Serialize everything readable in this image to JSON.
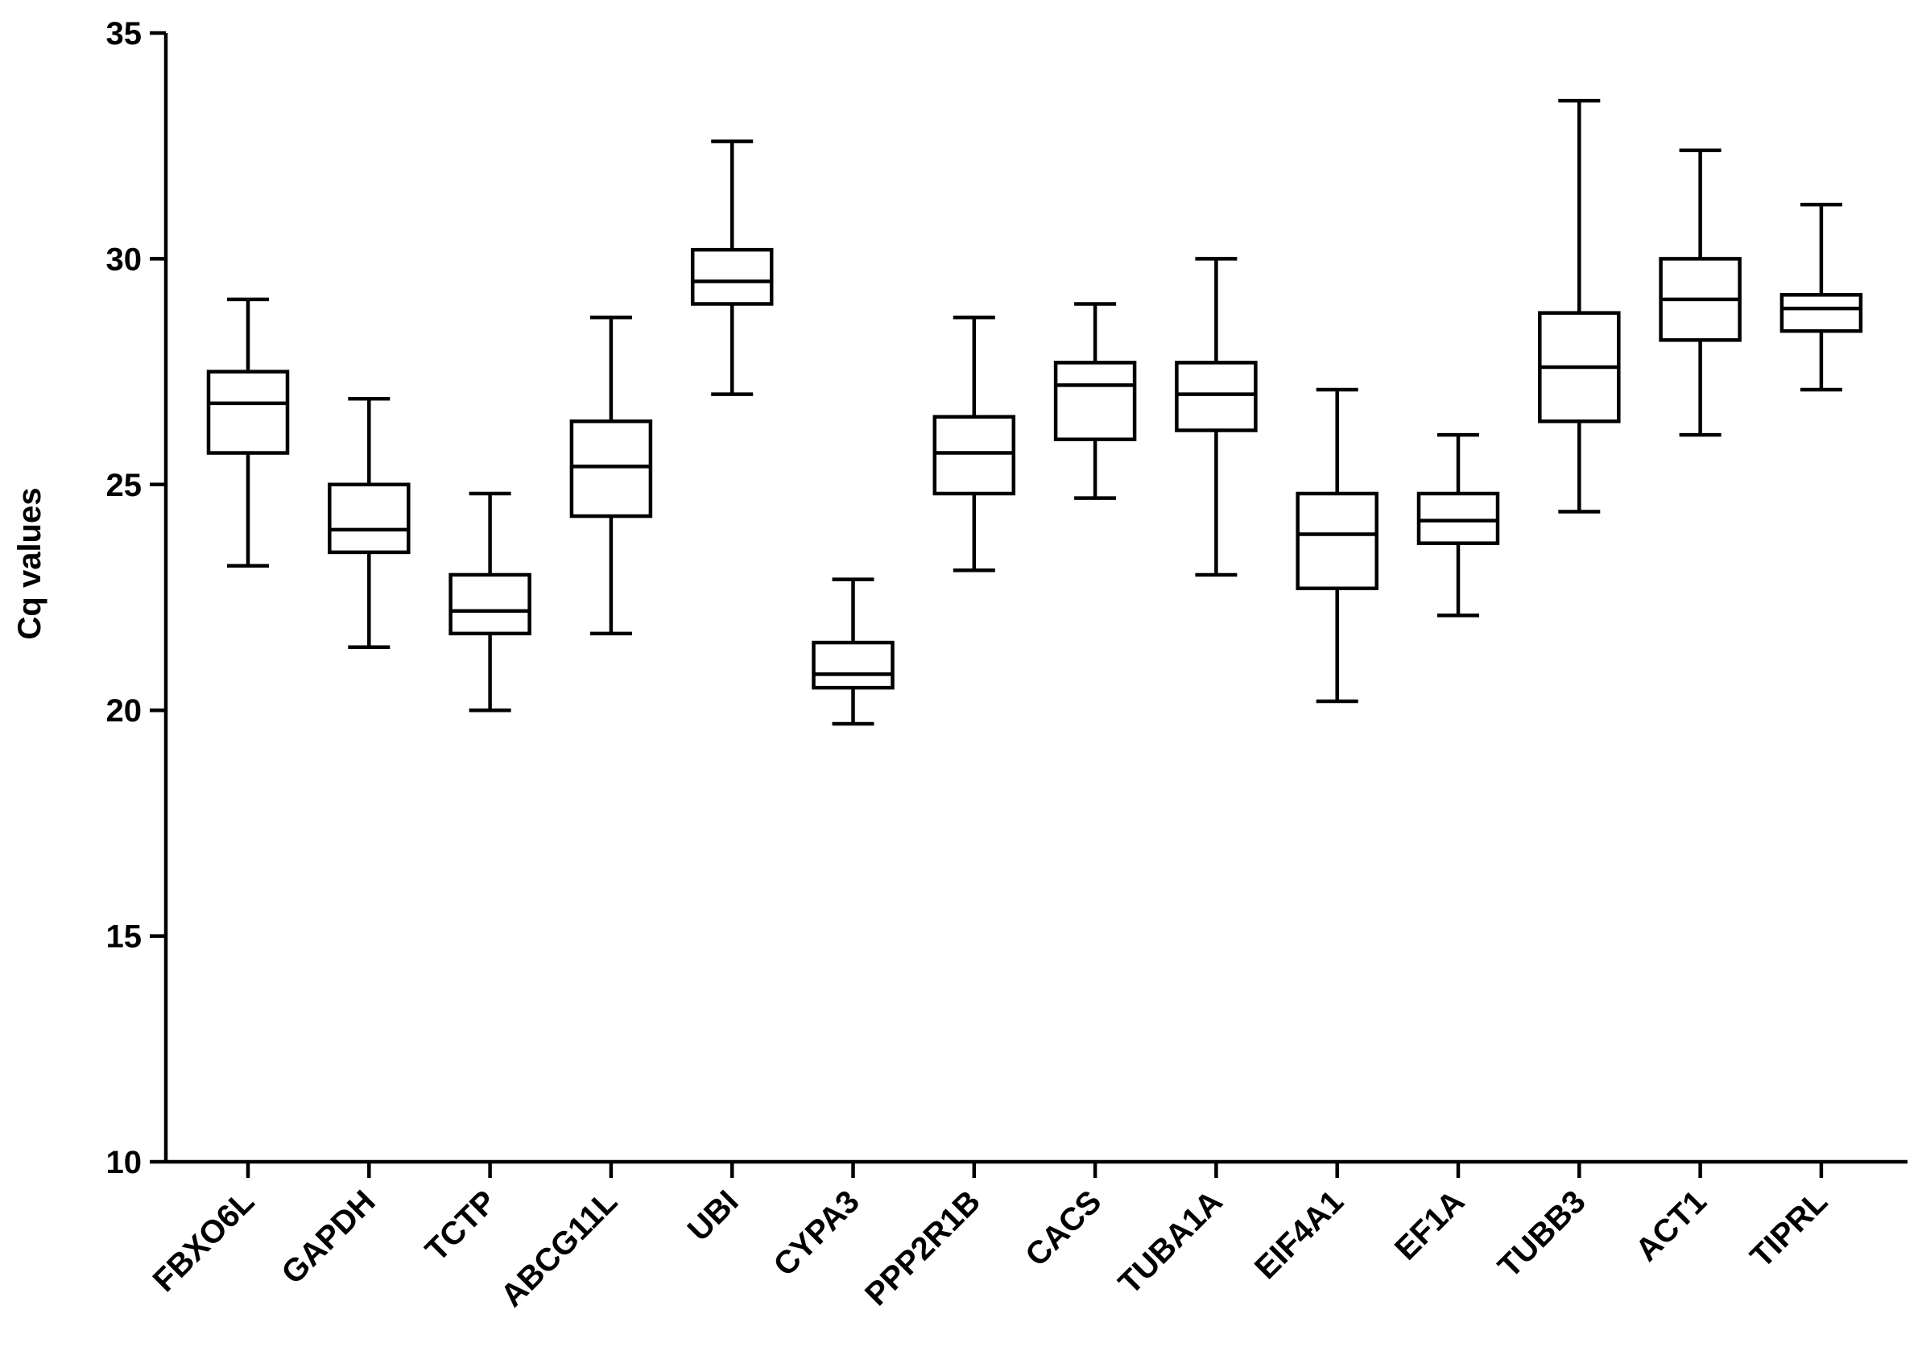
{
  "chart_data": {
    "type": "box",
    "y_label": "Cq values",
    "categories": [
      "FBXO6L",
      "GAPDH",
      "TCTP",
      "ABCG11L",
      "UBI",
      "CYPA3",
      "PPP2R1B",
      "CACS",
      "TUBA1A",
      "EIF4A1",
      "EF1A",
      "TUBB3",
      "ACT1",
      "TIPRL"
    ],
    "min": [
      23.2,
      21.4,
      20.0,
      21.7,
      27.0,
      19.7,
      23.1,
      24.7,
      23.0,
      20.2,
      22.1,
      24.4,
      26.1,
      27.1
    ],
    "q1": [
      25.7,
      23.5,
      21.7,
      24.3,
      29.0,
      20.5,
      24.8,
      26.0,
      26.2,
      22.7,
      23.7,
      26.4,
      28.2,
      28.4
    ],
    "median": [
      26.8,
      24.0,
      22.2,
      25.4,
      29.5,
      20.8,
      25.7,
      27.2,
      27.0,
      23.9,
      24.2,
      27.6,
      29.1,
      28.9
    ],
    "q3": [
      27.5,
      25.0,
      23.0,
      26.4,
      30.2,
      21.5,
      26.5,
      27.7,
      27.7,
      24.8,
      24.8,
      28.8,
      30.0,
      29.2
    ],
    "max": [
      29.1,
      26.9,
      24.8,
      28.7,
      32.6,
      22.9,
      28.7,
      29.0,
      30.0,
      27.1,
      26.1,
      33.5,
      32.4,
      31.2
    ],
    "color": "#000000",
    "ylim": [
      10,
      35
    ],
    "yticks": [
      10,
      15,
      20,
      25,
      30,
      35
    ],
    "grid": false
  }
}
